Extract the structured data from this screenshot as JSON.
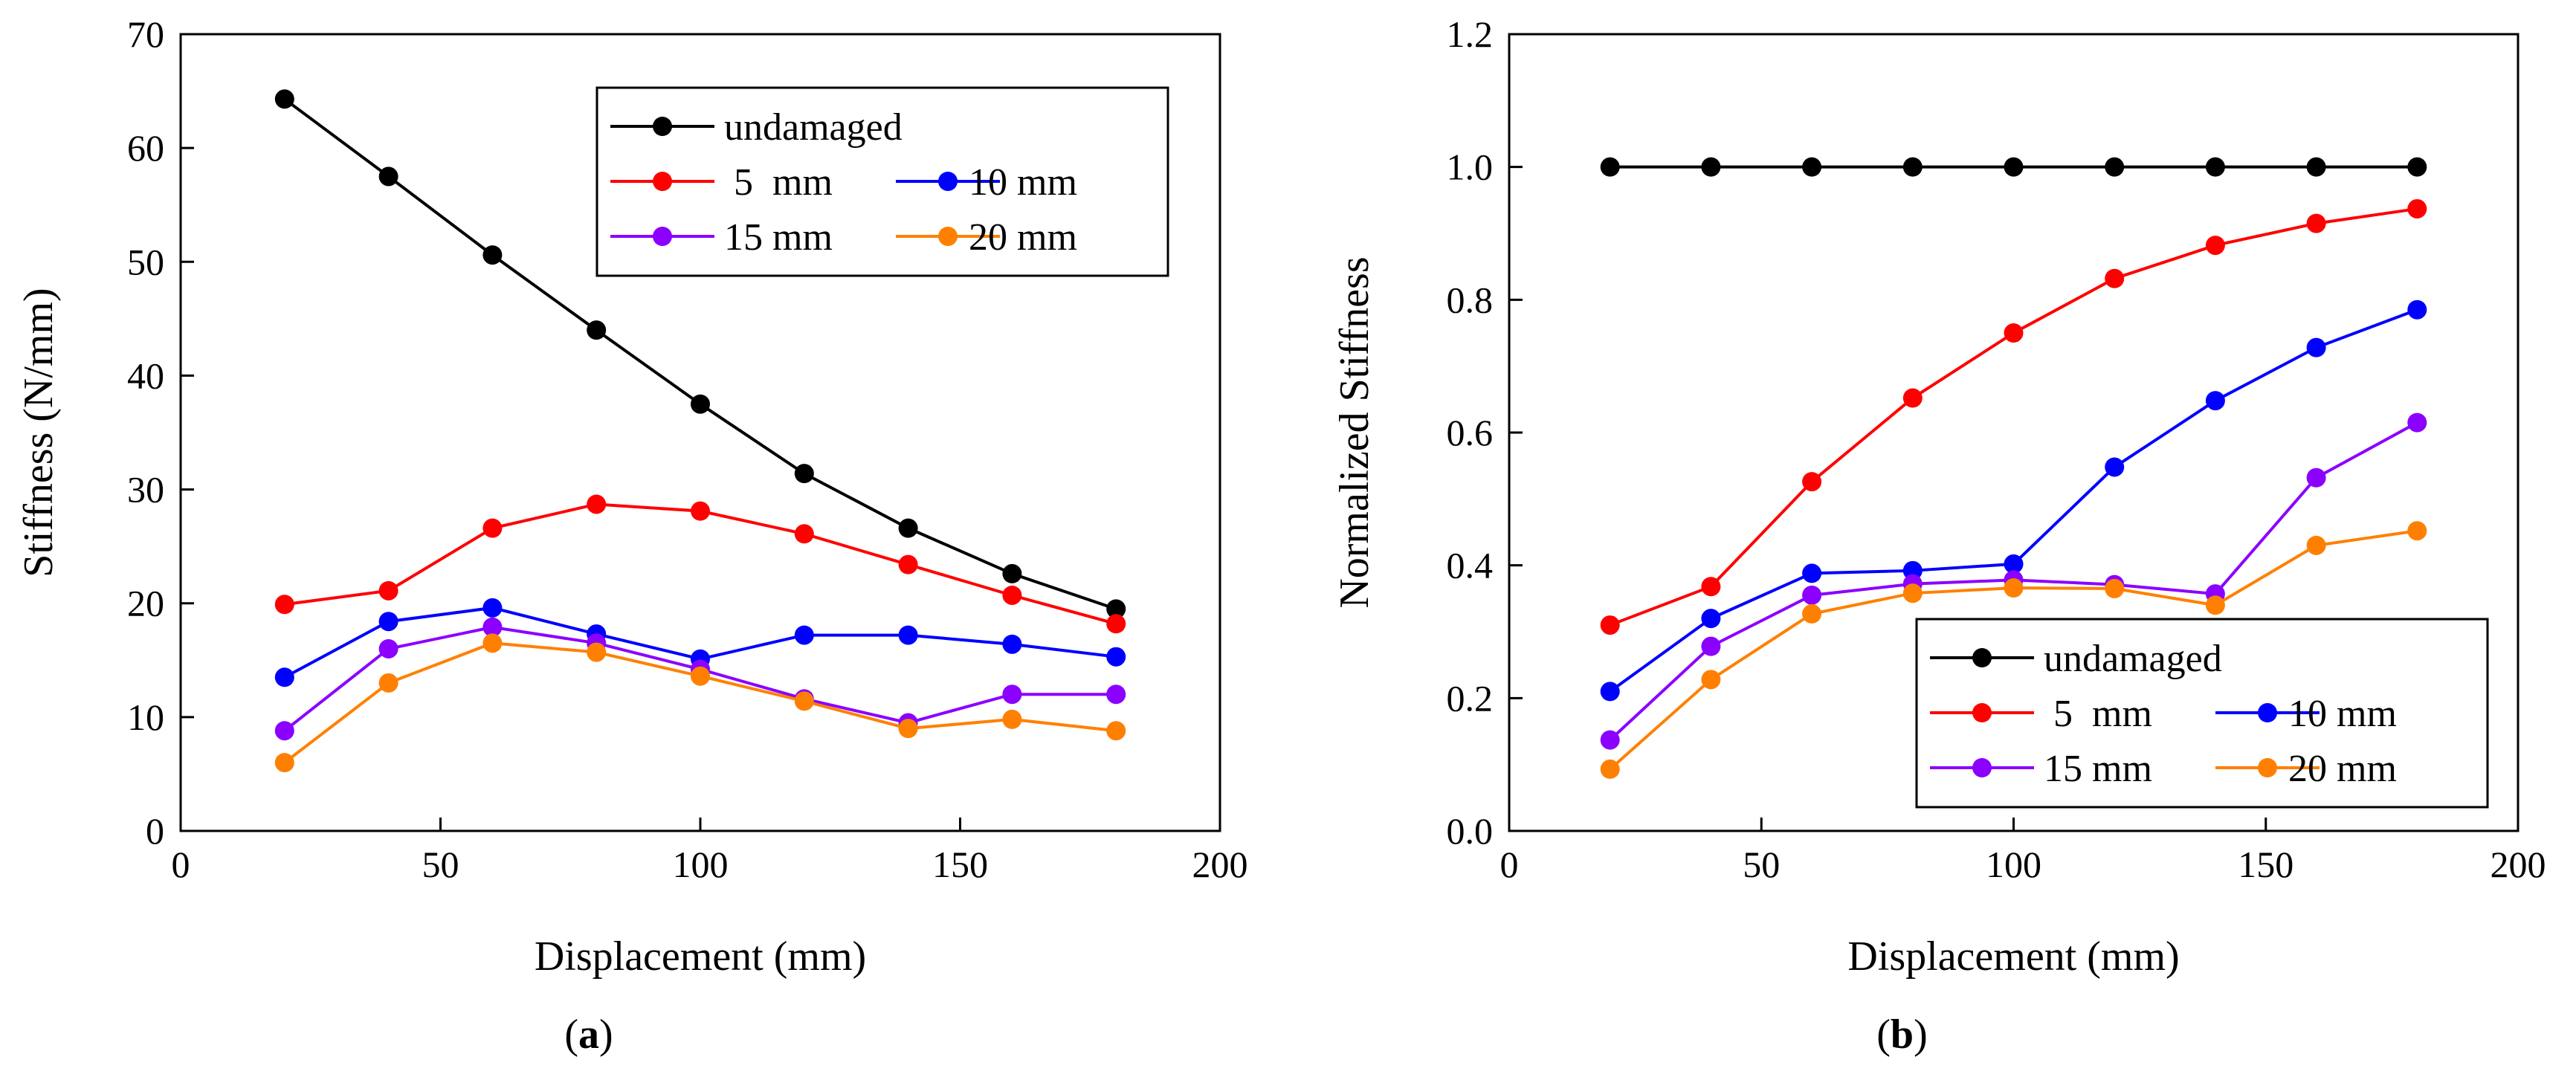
{
  "chart_data": [
    {
      "type": "line",
      "panel_label": "a",
      "title": "",
      "xlabel": "Displacement (mm)",
      "ylabel": "Stiffness (N/mm)",
      "xlim": [
        0,
        200
      ],
      "ylim": [
        0,
        70
      ],
      "xticks": [
        0,
        50,
        100,
        150,
        200
      ],
      "yticks": [
        0,
        10,
        20,
        30,
        40,
        50,
        60,
        70
      ],
      "grid": false,
      "legend_position": "top-right",
      "x": [
        20,
        40,
        60,
        80,
        100,
        120,
        140,
        160,
        180
      ],
      "series": [
        {
          "name": "undamaged",
          "color": "#000000",
          "values": [
            64.3,
            57.5,
            50.6,
            44.0,
            37.5,
            31.4,
            26.6,
            22.6,
            19.5
          ]
        },
        {
          "name": " 5  mm",
          "color": "#ff0000",
          "values": [
            19.9,
            21.1,
            26.6,
            28.7,
            28.1,
            26.1,
            23.4,
            20.7,
            18.2
          ]
        },
        {
          "name": "10 mm",
          "color": "#0000ff",
          "values": [
            13.5,
            18.4,
            19.6,
            17.3,
            15.1,
            17.2,
            17.2,
            16.4,
            15.3
          ]
        },
        {
          "name": "15 mm",
          "color": "#8b00ff",
          "values": [
            8.8,
            16.0,
            17.9,
            16.5,
            14.2,
            11.6,
            9.5,
            12.0,
            12.0
          ]
        },
        {
          "name": "20 mm",
          "color": "#ff8000",
          "values": [
            6.0,
            13.0,
            16.5,
            15.7,
            13.6,
            11.4,
            9.0,
            9.8,
            8.8
          ]
        }
      ]
    },
    {
      "type": "line",
      "panel_label": "b",
      "title": "",
      "xlabel": "Displacement (mm)",
      "ylabel": "Normalized Stiffness",
      "xlim": [
        0,
        200
      ],
      "ylim": [
        0,
        1.2
      ],
      "xticks": [
        0,
        50,
        100,
        150,
        200
      ],
      "yticks": [
        0.0,
        0.2,
        0.4,
        0.6,
        0.8,
        1.0,
        1.2
      ],
      "ytick_labels": [
        "0.0",
        "0.2",
        "0.4",
        "0.6",
        "0.8",
        "1.0",
        "1.2"
      ],
      "grid": false,
      "legend_position": "bottom-right",
      "x": [
        20,
        40,
        60,
        80,
        100,
        120,
        140,
        160,
        180
      ],
      "series": [
        {
          "name": "undamaged",
          "color": "#000000",
          "values": [
            1.0,
            1.0,
            1.0,
            1.0,
            1.0,
            1.0,
            1.0,
            1.0,
            1.0
          ]
        },
        {
          "name": " 5  mm",
          "color": "#ff0000",
          "values": [
            0.31,
            0.368,
            0.526,
            0.652,
            0.75,
            0.832,
            0.882,
            0.915,
            0.937
          ]
        },
        {
          "name": "10 mm",
          "color": "#0000ff",
          "values": [
            0.21,
            0.32,
            0.388,
            0.392,
            0.402,
            0.548,
            0.648,
            0.728,
            0.785
          ]
        },
        {
          "name": "15 mm",
          "color": "#8b00ff",
          "values": [
            0.137,
            0.278,
            0.355,
            0.372,
            0.378,
            0.371,
            0.357,
            0.532,
            0.615
          ]
        },
        {
          "name": "20 mm",
          "color": "#ff8000",
          "values": [
            0.093,
            0.228,
            0.327,
            0.358,
            0.366,
            0.365,
            0.34,
            0.43,
            0.452
          ]
        }
      ]
    }
  ]
}
